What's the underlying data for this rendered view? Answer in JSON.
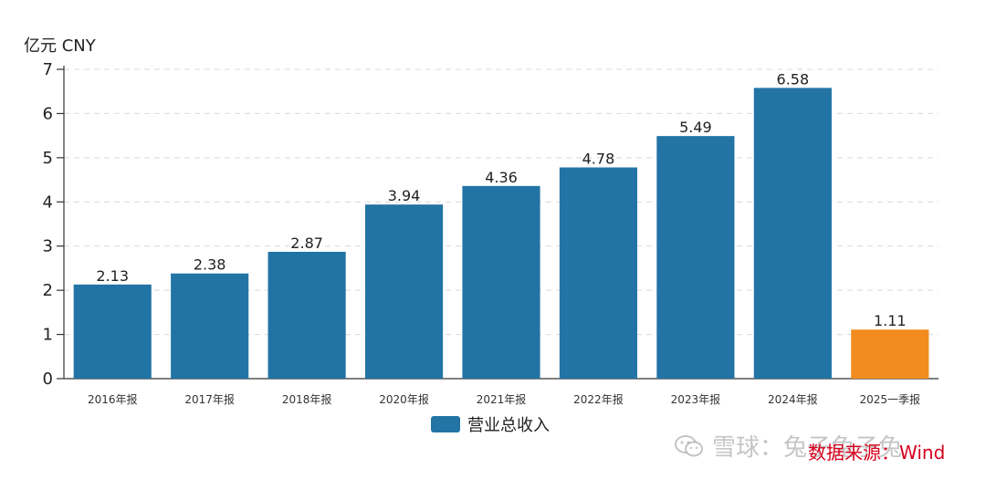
{
  "chart_data": {
    "type": "bar",
    "title": "",
    "unit_label": "亿元  CNY",
    "ylabel": "",
    "xlabel": "",
    "ylim": [
      0,
      7
    ],
    "yticks": [
      0,
      1,
      2,
      3,
      4,
      5,
      6,
      7
    ],
    "grid": true,
    "legend_position": "bottom-center",
    "categories": [
      "2016年报",
      "2017年报",
      "2018年报",
      "2020年报",
      "2021年报",
      "2022年报",
      "2023年报",
      "2024年报",
      "2025一季报"
    ],
    "series": [
      {
        "name": "营业总收入",
        "values": [
          2.13,
          2.38,
          2.87,
          3.94,
          4.36,
          4.78,
          5.49,
          6.58,
          1.11
        ],
        "data_labels": [
          "2.13",
          "2.38",
          "2.87",
          "3.94",
          "4.36",
          "4.78",
          "5.49",
          "6.58",
          "1.11"
        ],
        "color": "#2274a5",
        "highlight_color": "#f28c1e",
        "highlight_index": 8
      }
    ]
  },
  "watermark": {
    "icon": "wechat-icon",
    "text": "雪球：兔子兔子兔"
  },
  "source_text": "数据来源：Wind"
}
